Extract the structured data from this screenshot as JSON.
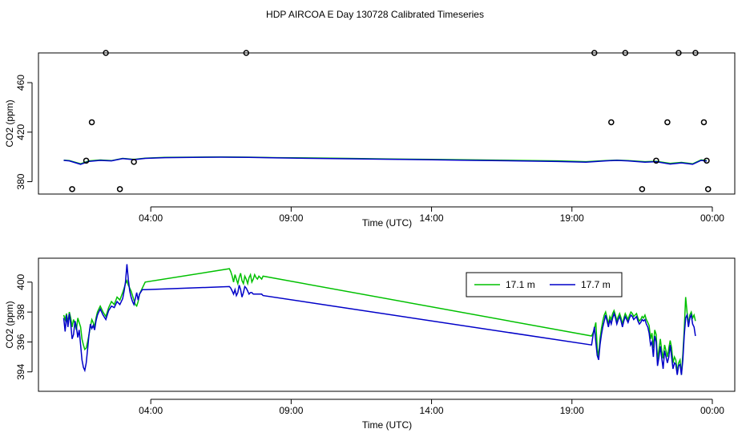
{
  "title": "HDP AIRCOA E  Day 130728  Calibrated Timeseries",
  "chart_data": [
    {
      "type": "line",
      "xlabel": "Time (UTC)",
      "ylabel": "CO2 (ppm)",
      "xlim": [
        0.0,
        24.8
      ],
      "ylim": [
        370,
        484
      ],
      "x_ticks": [
        {
          "value": 4,
          "label": "04:00"
        },
        {
          "value": 9,
          "label": "09:00"
        },
        {
          "value": 14,
          "label": "14:00"
        },
        {
          "value": 19,
          "label": "19:00"
        },
        {
          "value": 24,
          "label": "00:00"
        }
      ],
      "y_ticks": [
        {
          "value": 380,
          "label": "380"
        },
        {
          "value": 420,
          "label": "420"
        },
        {
          "value": 460,
          "label": "460"
        }
      ],
      "series": [
        {
          "color": "#00c000",
          "x": [
            0.9,
            1.1,
            1.5,
            1.8,
            2.2,
            2.6,
            3.0,
            3.4,
            3.8,
            4.5,
            5.5,
            6.5,
            7.5,
            8.5,
            9.5,
            11,
            12.5,
            14,
            15.5,
            17,
            18.5,
            19.5,
            20.2,
            20.6,
            21.0,
            21.6,
            22.0,
            22.5,
            22.9,
            23.3,
            23.6,
            23.8
          ],
          "y": [
            397.4,
            397.0,
            394.5,
            396.8,
            397.5,
            397.0,
            398.8,
            398.0,
            399.0,
            399.6,
            399.8,
            400.0,
            399.8,
            399.4,
            399.2,
            398.8,
            398.4,
            398.0,
            397.6,
            397.2,
            396.8,
            396.2,
            397.0,
            397.4,
            397.0,
            396.2,
            396.5,
            394.8,
            395.6,
            394.4,
            397.6,
            397.0
          ]
        },
        {
          "color": "#0000c8",
          "x": [
            0.9,
            1.1,
            1.5,
            1.8,
            2.2,
            2.6,
            3.0,
            3.4,
            3.8,
            4.5,
            5.5,
            6.5,
            7.5,
            8.5,
            9.5,
            11,
            12.5,
            14,
            15.5,
            17,
            18.5,
            19.5,
            20.2,
            20.6,
            21.0,
            21.6,
            22.0,
            22.5,
            22.9,
            23.3,
            23.6,
            23.8
          ],
          "y": [
            397.2,
            396.8,
            394.0,
            396.4,
            397.2,
            396.8,
            398.6,
            397.8,
            398.8,
            399.4,
            399.6,
            399.8,
            399.6,
            399.2,
            398.9,
            398.5,
            398.1,
            397.7,
            397.2,
            396.8,
            396.3,
            395.8,
            396.8,
            397.2,
            396.8,
            395.8,
            396.2,
            394.2,
            395.2,
            394.0,
            397.2,
            396.6
          ]
        }
      ],
      "points": {
        "x": [
          1.2,
          1.7,
          1.9,
          2.4,
          2.9,
          3.4,
          7.4,
          19.8,
          20.4,
          20.9,
          21.5,
          22.0,
          22.4,
          22.8,
          23.4,
          23.7,
          23.8,
          23.85
        ],
        "y": [
          374,
          397,
          428,
          484,
          374,
          396,
          484,
          484,
          428,
          484,
          374,
          397,
          428,
          484,
          484,
          428,
          397,
          374
        ]
      }
    },
    {
      "type": "line",
      "xlabel": "Time (UTC)",
      "ylabel": "CO2 (ppm)",
      "xlim": [
        0.0,
        24.8
      ],
      "ylim": [
        392.7,
        401.6
      ],
      "x_ticks": [
        {
          "value": 4,
          "label": "04:00"
        },
        {
          "value": 9,
          "label": "09:00"
        },
        {
          "value": 14,
          "label": "14:00"
        },
        {
          "value": 19,
          "label": "19:00"
        },
        {
          "value": 24,
          "label": "00:00"
        }
      ],
      "y_ticks": [
        {
          "value": 394,
          "label": "394"
        },
        {
          "value": 396,
          "label": "396"
        },
        {
          "value": 398,
          "label": "398"
        },
        {
          "value": 400,
          "label": "400"
        }
      ],
      "legend": {
        "position": "top-right",
        "entries": [
          "17.1 m",
          "17.7 m"
        ]
      },
      "series": [
        {
          "name": "17.1 m",
          "color": "#00c000",
          "x": [
            0.9,
            0.95,
            1.0,
            1.05,
            1.1,
            1.15,
            1.2,
            1.25,
            1.3,
            1.35,
            1.4,
            1.45,
            1.5,
            1.55,
            1.6,
            1.65,
            1.7,
            1.75,
            1.8,
            1.85,
            1.9,
            1.95,
            2.0,
            2.05,
            2.1,
            2.15,
            2.2,
            2.3,
            2.4,
            2.5,
            2.6,
            2.7,
            2.8,
            2.9,
            3.0,
            3.05,
            3.1,
            3.15,
            3.2,
            3.25,
            3.3,
            3.35,
            3.4,
            3.45,
            3.5,
            3.55,
            3.6,
            3.7,
            3.8,
            6.8,
            6.85,
            6.9,
            6.95,
            7.0,
            7.05,
            7.1,
            7.15,
            7.2,
            7.25,
            7.3,
            7.35,
            7.4,
            7.45,
            7.5,
            7.55,
            7.6,
            7.65,
            7.7,
            7.75,
            7.8,
            7.85,
            7.9,
            7.95,
            8.0,
            19.7,
            19.75,
            19.8,
            19.85,
            19.9,
            19.95,
            20.0,
            20.05,
            20.1,
            20.15,
            20.2,
            20.25,
            20.3,
            20.35,
            20.4,
            20.45,
            20.5,
            20.55,
            20.6,
            20.65,
            20.7,
            20.75,
            20.8,
            20.85,
            20.9,
            20.95,
            21.0,
            21.05,
            21.1,
            21.15,
            21.2,
            21.25,
            21.3,
            21.35,
            21.4,
            21.45,
            21.5,
            21.55,
            21.6,
            21.65,
            21.7,
            21.75,
            21.8,
            21.85,
            21.9,
            21.95,
            22.0,
            22.05,
            22.1,
            22.15,
            22.2,
            22.25,
            22.3,
            22.35,
            22.4,
            22.45,
            22.5,
            22.55,
            22.6,
            22.65,
            22.7,
            22.75,
            22.8,
            22.85,
            22.9,
            22.95,
            23.0,
            23.05,
            23.1,
            23.15,
            23.2,
            23.25,
            23.3,
            23.35,
            23.4
          ],
          "y": [
            397.8,
            397.5,
            397.9,
            397.3,
            398.0,
            397.6,
            397.0,
            397.5,
            397.2,
            396.8,
            397.6,
            397.3,
            397.0,
            396.2,
            395.8,
            395.5,
            395.6,
            396.0,
            396.5,
            397.0,
            397.5,
            397.3,
            397.0,
            397.6,
            398.0,
            398.2,
            398.4,
            398.0,
            397.7,
            398.3,
            398.7,
            398.5,
            399.0,
            398.8,
            399.3,
            399.6,
            399.9,
            400.1,
            399.8,
            399.6,
            399.4,
            399.1,
            398.8,
            398.5,
            398.4,
            398.7,
            399.2,
            399.6,
            400.0,
            400.9,
            400.7,
            400.4,
            400.0,
            400.5,
            400.2,
            399.9,
            400.3,
            400.6,
            400.1,
            399.9,
            400.4,
            400.2,
            399.9,
            400.3,
            400.5,
            400.0,
            400.2,
            400.5,
            400.3,
            400.2,
            400.4,
            400.3,
            400.2,
            400.4,
            396.4,
            396.6,
            396.9,
            397.3,
            395.6,
            395.0,
            396.2,
            396.9,
            397.4,
            397.8,
            398.0,
            397.6,
            397.2,
            397.7,
            397.5,
            397.9,
            398.1,
            397.8,
            397.4,
            397.7,
            397.9,
            397.6,
            397.2,
            397.6,
            397.9,
            397.7,
            397.5,
            397.8,
            398.0,
            397.9,
            397.7,
            397.8,
            397.9,
            397.6,
            397.4,
            397.5,
            397.7,
            397.6,
            397.8,
            397.5,
            397.3,
            397.1,
            396.2,
            396.6,
            395.6,
            396.8,
            396.5,
            394.8,
            395.5,
            396.2,
            395.4,
            394.9,
            395.8,
            395.4,
            395.0,
            395.6,
            396.1,
            395.6,
            394.6,
            395.0,
            394.8,
            394.0,
            394.6,
            394.8,
            393.8,
            395.2,
            396.8,
            399.0,
            398.0,
            397.2,
            397.8,
            398.0,
            397.6,
            397.8,
            397.4
          ]
        },
        {
          "name": "17.7 m",
          "color": "#0000c8",
          "x": [
            0.9,
            0.95,
            1.0,
            1.05,
            1.1,
            1.15,
            1.2,
            1.25,
            1.3,
            1.35,
            1.4,
            1.45,
            1.5,
            1.55,
            1.6,
            1.65,
            1.7,
            1.75,
            1.8,
            1.85,
            1.9,
            1.95,
            2.0,
            2.05,
            2.1,
            2.15,
            2.2,
            2.3,
            2.4,
            2.5,
            2.6,
            2.7,
            2.8,
            2.9,
            3.0,
            3.05,
            3.1,
            3.15,
            3.2,
            3.25,
            3.3,
            3.35,
            3.4,
            3.45,
            3.5,
            3.55,
            3.6,
            3.7,
            3.8,
            6.8,
            6.85,
            6.9,
            6.95,
            7.0,
            7.05,
            7.1,
            7.15,
            7.2,
            7.25,
            7.3,
            7.35,
            7.4,
            7.45,
            7.5,
            7.55,
            7.6,
            7.65,
            7.7,
            7.75,
            7.8,
            7.85,
            7.9,
            7.95,
            8.0,
            19.7,
            19.75,
            19.8,
            19.85,
            19.9,
            19.95,
            20.0,
            20.05,
            20.1,
            20.15,
            20.2,
            20.25,
            20.3,
            20.35,
            20.4,
            20.45,
            20.5,
            20.55,
            20.6,
            20.65,
            20.7,
            20.75,
            20.8,
            20.85,
            20.9,
            20.95,
            21.0,
            21.05,
            21.1,
            21.15,
            21.2,
            21.25,
            21.3,
            21.35,
            21.4,
            21.45,
            21.5,
            21.55,
            21.6,
            21.65,
            21.7,
            21.75,
            21.8,
            21.85,
            21.9,
            21.95,
            22.0,
            22.05,
            22.1,
            22.15,
            22.2,
            22.25,
            22.3,
            22.35,
            22.4,
            22.45,
            22.5,
            22.55,
            22.6,
            22.65,
            22.7,
            22.75,
            22.8,
            22.85,
            22.9,
            22.95,
            23.0,
            23.05,
            23.1,
            23.15,
            23.2,
            23.25,
            23.3,
            23.35,
            23.4
          ],
          "y": [
            397.6,
            396.7,
            397.8,
            397.0,
            397.9,
            397.2,
            396.2,
            396.5,
            397.4,
            397.0,
            396.3,
            396.8,
            395.8,
            394.8,
            394.3,
            394.1,
            394.6,
            395.5,
            396.5,
            397.2,
            396.9,
            397.1,
            396.8,
            397.4,
            397.8,
            398.0,
            398.2,
            397.8,
            397.5,
            398.1,
            398.4,
            398.3,
            398.7,
            398.5,
            398.9,
            399.4,
            400.0,
            401.2,
            400.2,
            399.4,
            399.0,
            398.7,
            398.5,
            398.9,
            399.3,
            398.8,
            399.2,
            399.5,
            399.5,
            399.7,
            399.6,
            399.4,
            399.2,
            399.5,
            399.1,
            399.3,
            399.8,
            399.5,
            399.0,
            399.3,
            399.7,
            399.6,
            399.4,
            399.2,
            399.3,
            399.3,
            399.2,
            399.2,
            399.2,
            399.2,
            399.2,
            399.2,
            399.2,
            399.1,
            395.8,
            396.4,
            397.0,
            396.0,
            395.1,
            394.8,
            395.8,
            396.5,
            397.0,
            397.4,
            397.8,
            397.4,
            397.0,
            397.5,
            397.2,
            397.6,
            397.9,
            397.6,
            397.2,
            397.5,
            397.7,
            397.4,
            397.0,
            397.4,
            397.7,
            397.5,
            397.3,
            397.6,
            397.8,
            397.7,
            397.5,
            397.6,
            397.7,
            397.4,
            397.2,
            397.3,
            397.5,
            397.4,
            397.5,
            397.2,
            397.0,
            396.6,
            395.8,
            396.0,
            395.0,
            396.4,
            396.0,
            394.4,
            395.0,
            395.7,
            394.9,
            394.2,
            395.4,
            395.0,
            394.6,
            395.0,
            395.8,
            395.0,
            394.2,
            394.6,
            394.5,
            393.8,
            394.4,
            394.5,
            393.8,
            394.8,
            396.4,
            397.6,
            397.8,
            397.0,
            397.6,
            397.8,
            397.2,
            397.0,
            396.4
          ]
        }
      ]
    }
  ]
}
